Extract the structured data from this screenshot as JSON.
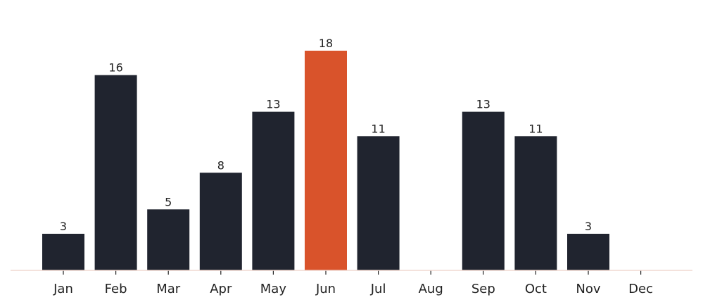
{
  "chart_data": {
    "type": "bar",
    "categories": [
      "Jan",
      "Feb",
      "Mar",
      "Apr",
      "May",
      "Jun",
      "Jul",
      "Aug",
      "Sep",
      "Oct",
      "Nov",
      "Dec"
    ],
    "values": [
      3,
      16,
      5,
      8,
      13,
      18,
      11,
      null,
      13,
      11,
      3,
      null
    ],
    "colors": [
      "#20242f",
      "#20242f",
      "#20242f",
      "#20242f",
      "#20242f",
      "#d9532b",
      "#20242f",
      "#20242f",
      "#20242f",
      "#20242f",
      "#20242f",
      "#20242f"
    ],
    "ylim": [
      0,
      18
    ]
  }
}
